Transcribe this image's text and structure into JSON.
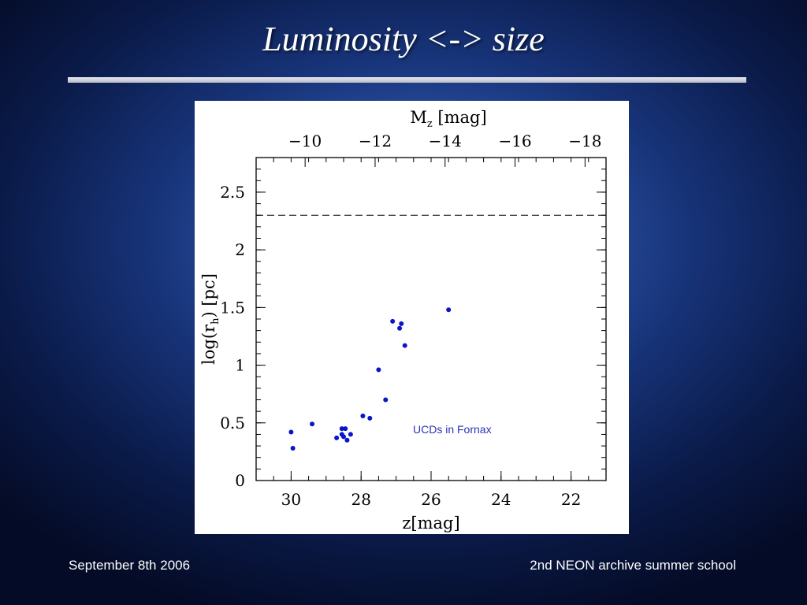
{
  "slide": {
    "title": "Luminosity <-> size",
    "footer_left": "September 8th 2006",
    "footer_right": "2nd NEON archive summer school"
  },
  "chart_data": {
    "type": "scatter",
    "xlabel": "z[mag]",
    "ylabel": "log(r_h) [pc]",
    "top_axis_label": "M_z [mag]",
    "xlim": [
      31,
      21
    ],
    "ylim": [
      0,
      2.8
    ],
    "x_ticks": [
      30,
      28,
      26,
      24,
      22
    ],
    "y_ticks": [
      0,
      0.5,
      1,
      1.5,
      2,
      2.5
    ],
    "top_ticks": [
      "−10",
      "−12",
      "−14",
      "−16",
      "−18"
    ],
    "top_tick_x": [
      29.6,
      27.6,
      25.6,
      23.6,
      21.6
    ],
    "reference_line_y": 2.3,
    "annotation": "UCDs in Fornax",
    "point_color": "#0a14c8",
    "series": [
      {
        "x": [
          30.0,
          29.95,
          29.4,
          28.7,
          28.55,
          28.5,
          28.45,
          28.55,
          28.4,
          28.3,
          27.95,
          27.75,
          27.5,
          27.3,
          27.1,
          26.9,
          26.85,
          26.75,
          25.5
        ],
        "y": [
          0.42,
          0.28,
          0.49,
          0.37,
          0.45,
          0.38,
          0.45,
          0.4,
          0.35,
          0.4,
          0.56,
          0.54,
          0.96,
          0.7,
          1.38,
          1.32,
          1.36,
          1.17,
          1.48
        ]
      }
    ]
  }
}
